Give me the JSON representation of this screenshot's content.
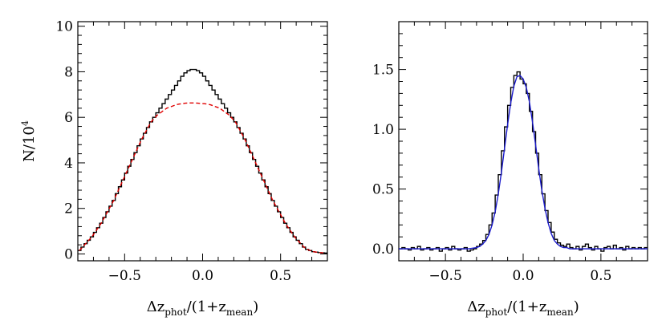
{
  "chart_data": [
    {
      "type": "line",
      "xlabel": "Δz",
      "xlabel_sub": "phot",
      "xlabel_mid": "/(1+z",
      "xlabel_sub2": "mean",
      "xlabel_end": ")",
      "ylabel": "N/10",
      "ylabel_sup": "4",
      "xlim": [
        -0.8,
        0.8
      ],
      "ylim": [
        -0.3,
        10.2
      ],
      "xticks": [
        -0.5,
        0.0,
        0.5
      ],
      "xtick_labels": [
        "−0.5",
        "0.0",
        "0.5"
      ],
      "yticks": [
        0,
        2,
        4,
        6,
        8,
        10
      ],
      "ytick_labels": [
        "0",
        "2",
        "4",
        "6",
        "8",
        "10"
      ],
      "series": [
        {
          "style": "histogram-step",
          "color": "#000000",
          "x": [
            -0.8,
            -0.78,
            -0.76,
            -0.74,
            -0.72,
            -0.7,
            -0.68,
            -0.66,
            -0.64,
            -0.62,
            -0.6,
            -0.58,
            -0.56,
            -0.54,
            -0.52,
            -0.5,
            -0.48,
            -0.46,
            -0.44,
            -0.42,
            -0.4,
            -0.38,
            -0.36,
            -0.34,
            -0.32,
            -0.3,
            -0.28,
            -0.26,
            -0.24,
            -0.22,
            -0.2,
            -0.18,
            -0.16,
            -0.14,
            -0.12,
            -0.1,
            -0.08,
            -0.06,
            -0.04,
            -0.02,
            0.0,
            0.02,
            0.04,
            0.06,
            0.08,
            0.1,
            0.12,
            0.14,
            0.16,
            0.18,
            0.2,
            0.22,
            0.24,
            0.26,
            0.28,
            0.3,
            0.32,
            0.34,
            0.36,
            0.38,
            0.4,
            0.42,
            0.44,
            0.46,
            0.48,
            0.5,
            0.52,
            0.54,
            0.56,
            0.58,
            0.6,
            0.62,
            0.64,
            0.66,
            0.68,
            0.7,
            0.72,
            0.74,
            0.76,
            0.78
          ],
          "y": [
            0.15,
            0.3,
            0.45,
            0.6,
            0.75,
            0.95,
            1.15,
            1.35,
            1.6,
            1.85,
            2.1,
            2.35,
            2.65,
            2.95,
            3.25,
            3.55,
            3.85,
            4.15,
            4.45,
            4.75,
            5.05,
            5.3,
            5.55,
            5.8,
            6.0,
            6.2,
            6.4,
            6.6,
            6.8,
            7.0,
            7.2,
            7.4,
            7.6,
            7.8,
            7.95,
            8.05,
            8.1,
            8.1,
            8.05,
            7.95,
            7.8,
            7.6,
            7.4,
            7.2,
            7.0,
            6.8,
            6.6,
            6.4,
            6.2,
            6.0,
            5.8,
            5.55,
            5.3,
            5.05,
            4.75,
            4.45,
            4.15,
            3.85,
            3.55,
            3.25,
            2.95,
            2.65,
            2.35,
            2.1,
            1.85,
            1.6,
            1.35,
            1.15,
            0.95,
            0.75,
            0.6,
            0.45,
            0.3,
            0.2,
            0.15,
            0.1,
            0.08,
            0.06,
            0.05,
            0.04
          ]
        },
        {
          "style": "dashed",
          "color": "#e00000",
          "x": [
            -0.79,
            -0.77,
            -0.75,
            -0.73,
            -0.71,
            -0.69,
            -0.67,
            -0.65,
            -0.63,
            -0.61,
            -0.59,
            -0.57,
            -0.55,
            -0.53,
            -0.51,
            -0.49,
            -0.47,
            -0.45,
            -0.43,
            -0.41,
            -0.39,
            -0.37,
            -0.35,
            -0.33,
            -0.31,
            -0.29,
            -0.27,
            -0.25,
            -0.23,
            -0.21,
            -0.19,
            -0.17,
            -0.15,
            -0.13,
            -0.11,
            -0.09,
            -0.07,
            -0.05,
            -0.03,
            -0.01,
            0.01,
            0.03,
            0.05,
            0.07,
            0.09,
            0.11,
            0.13,
            0.15,
            0.17,
            0.19,
            0.21,
            0.23,
            0.25,
            0.27,
            0.29,
            0.31,
            0.33,
            0.35,
            0.37,
            0.39,
            0.41,
            0.43,
            0.45,
            0.47,
            0.49,
            0.51,
            0.53,
            0.55,
            0.57,
            0.59,
            0.61,
            0.63,
            0.65,
            0.67,
            0.69,
            0.71,
            0.73,
            0.75,
            0.77,
            0.79
          ],
          "y": [
            0.15,
            0.3,
            0.45,
            0.6,
            0.75,
            0.95,
            1.15,
            1.35,
            1.6,
            1.85,
            2.1,
            2.35,
            2.65,
            2.95,
            3.25,
            3.55,
            3.85,
            4.15,
            4.45,
            4.75,
            5.05,
            5.3,
            5.55,
            5.8,
            5.95,
            6.1,
            6.2,
            6.3,
            6.4,
            6.45,
            6.5,
            6.55,
            6.58,
            6.6,
            6.62,
            6.63,
            6.63,
            6.63,
            6.62,
            6.6,
            6.6,
            6.58,
            6.55,
            6.5,
            6.45,
            6.4,
            6.3,
            6.2,
            6.1,
            5.95,
            5.8,
            5.55,
            5.3,
            5.05,
            4.75,
            4.45,
            4.15,
            3.85,
            3.55,
            3.25,
            2.95,
            2.65,
            2.35,
            2.1,
            1.85,
            1.6,
            1.35,
            1.15,
            0.95,
            0.75,
            0.6,
            0.45,
            0.3,
            0.2,
            0.15,
            0.1,
            0.08,
            0.06,
            0.05,
            0.04
          ]
        }
      ]
    },
    {
      "type": "line",
      "xlabel": "Δz",
      "xlabel_sub": "phot",
      "xlabel_mid": "/(1+z",
      "xlabel_sub2": "mean",
      "xlabel_end": ")",
      "xlim": [
        -0.8,
        0.8
      ],
      "ylim": [
        -0.1,
        1.9
      ],
      "xticks": [
        -0.5,
        0.0,
        0.5
      ],
      "xtick_labels": [
        "−0.5",
        "0.0",
        "0.5"
      ],
      "yticks": [
        0.0,
        0.5,
        1.0,
        1.5
      ],
      "ytick_labels": [
        "0.0",
        "0.5",
        "1.0",
        "1.5"
      ],
      "series": [
        {
          "style": "histogram-step",
          "color": "#000000",
          "x": [
            -0.8,
            -0.78,
            -0.76,
            -0.74,
            -0.72,
            -0.7,
            -0.68,
            -0.66,
            -0.64,
            -0.62,
            -0.6,
            -0.58,
            -0.56,
            -0.54,
            -0.52,
            -0.5,
            -0.48,
            -0.46,
            -0.44,
            -0.42,
            -0.4,
            -0.38,
            -0.36,
            -0.34,
            -0.32,
            -0.3,
            -0.28,
            -0.26,
            -0.24,
            -0.22,
            -0.2,
            -0.18,
            -0.16,
            -0.14,
            -0.12,
            -0.1,
            -0.08,
            -0.06,
            -0.04,
            -0.02,
            0.0,
            0.02,
            0.04,
            0.06,
            0.08,
            0.1,
            0.12,
            0.14,
            0.16,
            0.18,
            0.2,
            0.22,
            0.24,
            0.26,
            0.28,
            0.3,
            0.32,
            0.34,
            0.36,
            0.38,
            0.4,
            0.42,
            0.44,
            0.46,
            0.48,
            0.5,
            0.52,
            0.54,
            0.56,
            0.58,
            0.6,
            0.62,
            0.64,
            0.66,
            0.68,
            0.7,
            0.72,
            0.74,
            0.76,
            0.78
          ],
          "y": [
            0.0,
            0.01,
            0.0,
            -0.01,
            0.01,
            0.0,
            0.02,
            -0.01,
            0.0,
            0.01,
            -0.01,
            0.0,
            0.01,
            -0.02,
            0.0,
            0.01,
            -0.01,
            0.02,
            0.0,
            -0.01,
            0.0,
            0.01,
            -0.02,
            -0.01,
            0.0,
            0.02,
            0.04,
            0.07,
            0.12,
            0.2,
            0.3,
            0.45,
            0.62,
            0.82,
            1.02,
            1.2,
            1.35,
            1.45,
            1.48,
            1.42,
            1.38,
            1.3,
            1.15,
            0.98,
            0.8,
            0.62,
            0.46,
            0.32,
            0.22,
            0.14,
            0.08,
            0.05,
            0.03,
            0.02,
            0.04,
            0.01,
            0.0,
            0.02,
            -0.01,
            0.02,
            0.04,
            0.01,
            -0.01,
            0.02,
            0.0,
            -0.02,
            0.01,
            0.02,
            0.0,
            0.03,
            0.0,
            0.01,
            -0.01,
            0.02,
            0.0,
            0.01,
            0.0,
            0.01,
            0.0,
            0.01
          ]
        },
        {
          "style": "solid",
          "color": "#1a1acc",
          "x": [
            -0.8,
            -0.75,
            -0.7,
            -0.65,
            -0.6,
            -0.55,
            -0.5,
            -0.45,
            -0.4,
            -0.35,
            -0.3,
            -0.28,
            -0.26,
            -0.24,
            -0.22,
            -0.2,
            -0.18,
            -0.16,
            -0.14,
            -0.12,
            -0.1,
            -0.08,
            -0.06,
            -0.04,
            -0.02,
            0.0,
            0.02,
            0.04,
            0.06,
            0.08,
            0.1,
            0.12,
            0.14,
            0.16,
            0.18,
            0.2,
            0.22,
            0.24,
            0.26,
            0.28,
            0.3,
            0.35,
            0.4,
            0.45,
            0.5,
            0.55,
            0.6,
            0.65,
            0.7,
            0.75,
            0.8
          ],
          "y": [
            0.0,
            0.0,
            0.0,
            0.0,
            0.0,
            0.0,
            0.0,
            0.0,
            0.0,
            0.0,
            0.01,
            0.02,
            0.04,
            0.07,
            0.12,
            0.2,
            0.31,
            0.46,
            0.64,
            0.84,
            1.04,
            1.22,
            1.36,
            1.44,
            1.45,
            1.42,
            1.35,
            1.23,
            1.06,
            0.87,
            0.67,
            0.49,
            0.34,
            0.22,
            0.13,
            0.07,
            0.04,
            0.02,
            0.01,
            0.01,
            0.0,
            0.0,
            0.0,
            0.0,
            0.0,
            0.0,
            0.0,
            0.0,
            0.0,
            0.0,
            0.0
          ]
        }
      ]
    }
  ]
}
